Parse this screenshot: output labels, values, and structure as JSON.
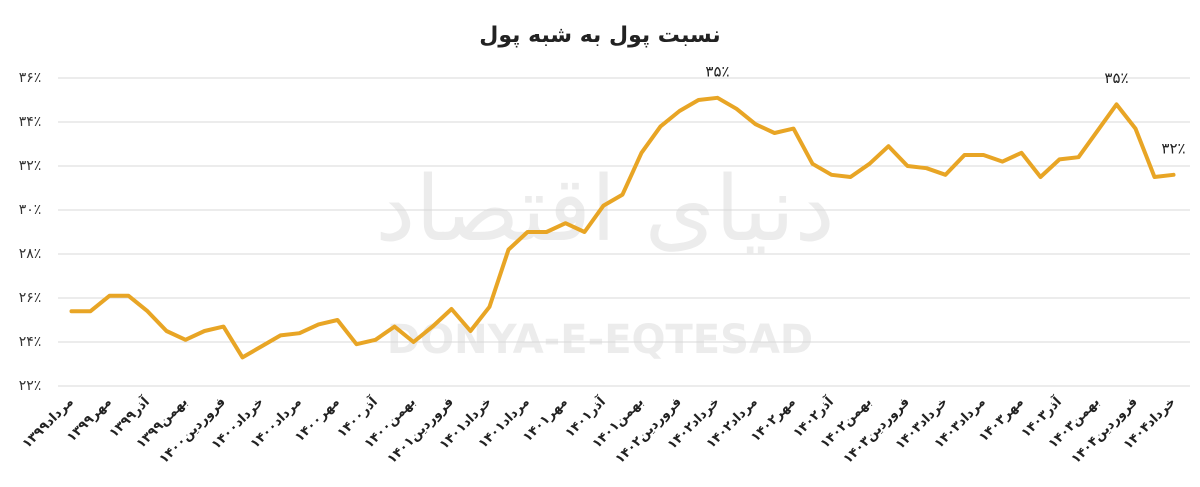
{
  "chart_data": {
    "type": "line",
    "title": "نسبت پول به شبه پول",
    "watermark": "DONYA-E-EQTESAD",
    "watermark_logo": "دنیای اقتصاد",
    "color": "#e8a525",
    "grid": true,
    "categories": [
      "مرداد۱۳۹۹",
      null,
      "مهر۱۳۹۹",
      null,
      "آذر۱۳۹۹",
      null,
      "بهمن۱۳۹۹",
      null,
      "فروردین۱۴۰۰",
      null,
      "خرداد۱۴۰۰",
      null,
      "مرداد۱۴۰۰",
      null,
      "مهر۱۴۰۰",
      null,
      "آذر۱۴۰۰",
      null,
      "بهمن۱۴۰۰",
      null,
      "فروردین۱۴۰۱",
      null,
      "خرداد۱۴۰۱",
      null,
      "مرداد۱۴۰۱",
      null,
      "مهر۱۴۰۱",
      null,
      "آذر۱۴۰۱",
      null,
      "بهمن۱۴۰۱",
      null,
      "فروردین۱۴۰۲",
      null,
      "خرداد۱۴۰۲",
      null,
      "مرداد۱۴۰۲",
      null,
      "مهر۱۴۰۲",
      null,
      "آذر۱۴۰۲",
      null,
      "بهمن۱۴۰۲",
      null,
      "فروردین۱۴۰۳",
      null,
      "خرداد۱۴۰۳",
      null,
      "مرداد۱۴۰۳",
      null,
      "مهر۱۴۰۳",
      null,
      "آذر۱۴۰۳",
      null,
      "بهمن۱۴۰۳",
      null,
      "فروردین۱۴۰۴",
      null,
      "خرداد۱۴۰۴"
    ],
    "values": [
      25.4,
      25.4,
      26.1,
      26.1,
      25.4,
      24.5,
      24.1,
      24.5,
      24.7,
      23.3,
      23.8,
      24.3,
      24.4,
      24.8,
      25.0,
      23.9,
      24.1,
      24.7,
      24.0,
      24.7,
      25.5,
      24.5,
      25.6,
      28.2,
      29.0,
      29.0,
      29.4,
      29.0,
      30.2,
      30.7,
      32.6,
      33.8,
      34.5,
      35.0,
      35.1,
      34.6,
      33.9,
      33.5,
      33.7,
      32.1,
      31.6,
      31.5,
      32.1,
      32.9,
      32.0,
      31.9,
      31.6,
      32.5,
      32.5,
      32.2,
      32.6,
      31.5,
      32.3,
      32.4,
      33.6,
      34.8,
      33.7,
      31.5,
      31.6
    ],
    "value_labels": [
      null,
      null,
      null,
      null,
      null,
      null,
      null,
      null,
      null,
      null,
      null,
      null,
      null,
      null,
      null,
      null,
      null,
      null,
      null,
      null,
      null,
      null,
      null,
      null,
      null,
      null,
      null,
      null,
      null,
      null,
      null,
      null,
      null,
      null,
      "۳۵٪",
      null,
      null,
      null,
      null,
      null,
      null,
      null,
      null,
      null,
      null,
      null,
      null,
      null,
      null,
      null,
      null,
      null,
      null,
      null,
      null,
      "۳۵٪",
      null,
      null,
      "۳۲٪"
    ],
    "ylim": [
      22,
      36
    ],
    "yticks": [
      {
        "value": 22,
        "label": "۲۲٪"
      },
      {
        "value": 24,
        "label": "۲۴٪"
      },
      {
        "value": 26,
        "label": "۲۶٪"
      },
      {
        "value": 28,
        "label": "۲۸٪"
      },
      {
        "value": 30,
        "label": "۳۰٪"
      },
      {
        "value": 32,
        "label": "۳۲٪"
      },
      {
        "value": 34,
        "label": "۳۴٪"
      },
      {
        "value": 36,
        "label": "۳۶٪"
      }
    ]
  }
}
